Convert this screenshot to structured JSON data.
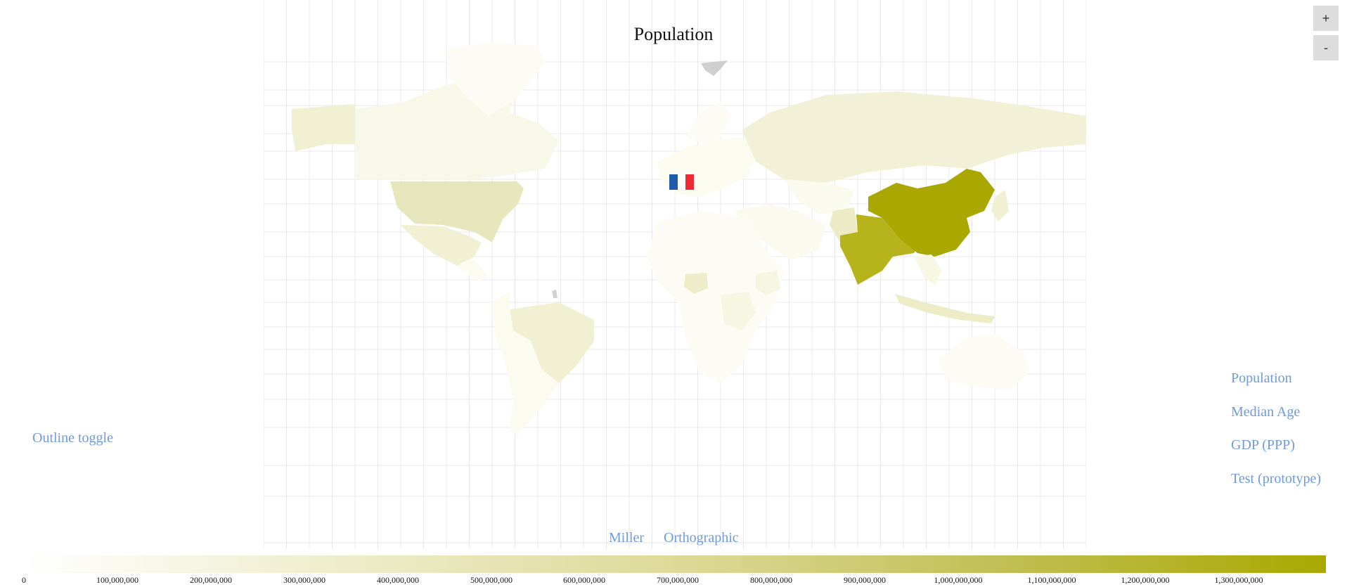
{
  "title": "Population",
  "zoom": {
    "in_label": "+",
    "out_label": "-"
  },
  "outline_toggle": "Outline toggle",
  "projections": [
    "Miller",
    "Orthographic"
  ],
  "datasets": [
    "Population",
    "Median Age",
    "GDP (PPP)",
    "Test (prototype)"
  ],
  "legend": {
    "min": 0,
    "max": 1400000000,
    "labels": [
      "0",
      "100,000,000",
      "200,000,000",
      "300,000,000",
      "400,000,000",
      "500,000,000",
      "600,000,000",
      "700,000,000",
      "800,000,000",
      "900,000,000",
      "1,000,000,000",
      "1,100,000,000",
      "1,200,000,000",
      "1,300,000,000"
    ],
    "colors": [
      "#ffffff",
      "#aaa800"
    ]
  },
  "highlighted_country_flag": "France",
  "colors": {
    "link": "#6f9ae0",
    "grid": "#e8e8e8",
    "no_data": "#cfcfcf",
    "scale_low": "#fbfbf0",
    "scale_high": "#aaa800"
  }
}
